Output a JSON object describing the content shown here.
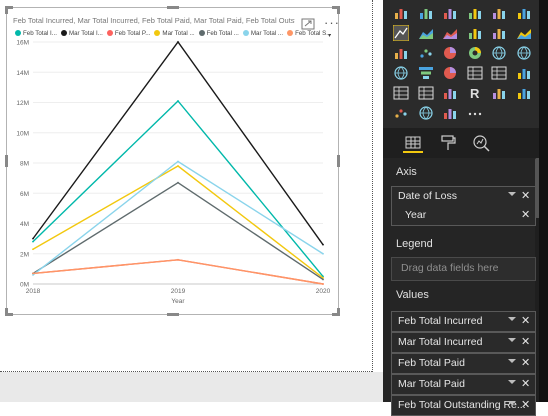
{
  "visual": {
    "title": "Feb Total Incurred, Mar Total Incurred, Feb Total Paid, Mar Total Paid, Feb Total Outstandin...",
    "more_label": "···",
    "legend": [
      {
        "label": "Feb Total I...",
        "color": "#01b8aa"
      },
      {
        "label": "Mar Total I...",
        "color": "#1a1a1a"
      },
      {
        "label": "Feb Total P...",
        "color": "#fd625e"
      },
      {
        "label": "Mar Total ...",
        "color": "#f2c80f"
      },
      {
        "label": "Feb Total ...",
        "color": "#5f6b6d"
      },
      {
        "label": "Mar Total ...",
        "color": "#8ad4eb"
      },
      {
        "label": "Feb Total S...",
        "color": "#fe9666"
      }
    ],
    "legend_more": "▾"
  },
  "chart_data": {
    "type": "line",
    "x": [
      "2018",
      "2019",
      "2020"
    ],
    "xlabel": "Year",
    "ylabel": "",
    "ylim": [
      0,
      16000000
    ],
    "yticks": [
      "0M",
      "2M",
      "4M",
      "6M",
      "8M",
      "10M",
      "12M",
      "14M",
      "16M"
    ],
    "grid": true,
    "series": [
      {
        "name": "Feb Total I...",
        "color": "#01b8aa",
        "values": [
          2800000,
          12100000,
          500000
        ]
      },
      {
        "name": "Mar Total I...",
        "color": "#1a1a1a",
        "values": [
          3000000,
          16000000,
          2600000
        ]
      },
      {
        "name": "Feb Total P...",
        "color": "#fd625e",
        "values": [
          700000,
          1600000,
          0
        ]
      },
      {
        "name": "Mar Total ...",
        "color": "#f2c80f",
        "values": [
          2300000,
          7800000,
          400000
        ]
      },
      {
        "name": "Feb Total ...",
        "color": "#5f6b6d",
        "values": [
          700000,
          6700000,
          300000
        ]
      },
      {
        "name": "Mar Total ...",
        "color": "#8ad4eb",
        "values": [
          600000,
          8100000,
          2000000
        ]
      },
      {
        "name": "Feb Total S...",
        "color": "#fe9666",
        "values": [
          700000,
          1600000,
          0
        ]
      }
    ]
  },
  "fields": {
    "axis_label": "Axis",
    "axis_items": [
      {
        "text": "Date of Loss",
        "has_chevron": true
      },
      {
        "text": "Year",
        "has_chevron": false
      }
    ],
    "legend_label": "Legend",
    "legend_placeholder": "Drag data fields here",
    "values_label": "Values",
    "values_items": [
      {
        "text": "Feb Total Incurred"
      },
      {
        "text": "Mar Total Incurred"
      },
      {
        "text": "Feb Total Paid"
      },
      {
        "text": "Mar Total Paid"
      },
      {
        "text": "Feb Total Outstanding Re..."
      }
    ]
  },
  "colors": {
    "accent": "#f2c80f",
    "pane_bg": "#252525",
    "gallery_bg": "#2b2b2b"
  },
  "icons": {
    "gallery": [
      "stacked-bar-icon",
      "stacked-column-icon",
      "clustered-bar-icon",
      "clustered-column-icon",
      "100pct-bar-icon",
      "100pct-column-icon",
      "line-chart-icon",
      "area-chart-icon",
      "stacked-area-icon",
      "line-column-icon",
      "line-clustered-icon",
      "ribbon-icon",
      "waterfall-icon",
      "scatter-icon",
      "pie-icon",
      "donut-icon",
      "treemap-icon",
      "globe-map-icon",
      "filled-map-icon",
      "funnel-icon",
      "gauge-icon",
      "kpi-icon",
      "card-icon",
      "image-icon",
      "table-icon",
      "matrix-icon",
      "slicer-icon",
      "r-visual-icon",
      "python-visual-icon",
      "custom-visual-icon",
      "key-influencers-icon",
      "globe-icon",
      "shape-icon",
      "more-visuals-icon"
    ],
    "tabs": [
      "fields-tab-icon",
      "format-tab-icon",
      "analytics-tab-icon"
    ]
  }
}
